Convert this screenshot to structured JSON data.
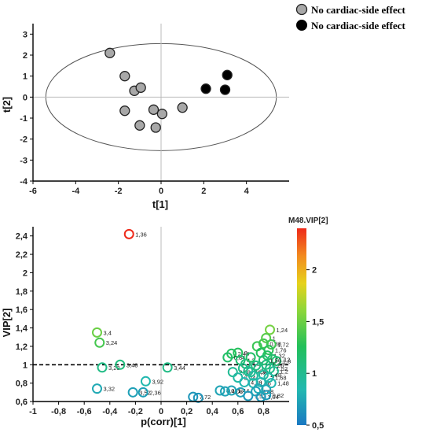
{
  "legend": {
    "items": [
      {
        "label": "No cardiac-side effect",
        "color": "#a8a8a8"
      },
      {
        "label": "No cardiac-side effect",
        "color": "#000000"
      }
    ]
  },
  "chart_data": [
    {
      "type": "scatter",
      "title": "",
      "xlabel": "t[1]",
      "ylabel": "t[2]",
      "xlim": [
        -6,
        6
      ],
      "ylim": [
        -4,
        3.5
      ],
      "xticks": [
        -6,
        -4,
        -2,
        0,
        2,
        4
      ],
      "yticks": [
        -4,
        -3,
        -2,
        -1,
        0,
        1,
        2,
        3
      ],
      "confidence_ellipse": {
        "cx": 0,
        "cy": 0,
        "rx": 5.4,
        "ry": 2.55
      },
      "series": [
        {
          "color": "#a8a8a8",
          "points": [
            [
              -2.4,
              2.1
            ],
            [
              -1.7,
              1.0
            ],
            [
              -1.25,
              0.3
            ],
            [
              -0.95,
              0.45
            ],
            [
              -1.7,
              -0.65
            ],
            [
              -1.0,
              -1.35
            ],
            [
              -0.35,
              -0.6
            ],
            [
              -0.25,
              -1.45
            ],
            [
              0.05,
              -0.8
            ],
            [
              1.0,
              -0.5
            ]
          ]
        },
        {
          "color": "#000000",
          "points": [
            [
              2.1,
              0.4
            ],
            [
              3.0,
              0.35
            ],
            [
              3.1,
              1.05
            ]
          ]
        }
      ]
    },
    {
      "type": "scatter",
      "title": "",
      "xlabel": "p(corr)[1]",
      "ylabel": "VIP[2]",
      "xlim": [
        -1,
        1
      ],
      "ylim": [
        0.6,
        2.5
      ],
      "xticks": [
        -1,
        -0.8,
        -0.6,
        -0.4,
        -0.2,
        0,
        0.2,
        0.4,
        0.6,
        0.8
      ],
      "xticklabels": [
        "-1",
        "-0,8",
        "-0,6",
        "-0,4",
        "-0,2",
        "0",
        "0,2",
        "0,4",
        "0,6",
        "0,8"
      ],
      "yticks": [
        0.6,
        0.8,
        1,
        1.2,
        1.4,
        1.6,
        1.8,
        2,
        2.2,
        2.4
      ],
      "yticklabels": [
        "0,6",
        "0,8",
        "1",
        "1,2",
        "1,4",
        "1,6",
        "1,8",
        "2",
        "2,2",
        "2,4"
      ],
      "threshold": 1,
      "colorbar": {
        "title": "M48.VIP[2]",
        "min": 0.5,
        "max": 2.4,
        "ticks": [
          0.5,
          1,
          1.5,
          2
        ],
        "ticklabels": [
          "0,5",
          "1",
          "1,5",
          "2"
        ],
        "colors": [
          "#1a78c2",
          "#22b8b0",
          "#22c05a",
          "#8bd63a",
          "#e6d21a",
          "#f28a1e",
          "#ee2a1a"
        ]
      },
      "points": [
        {
          "x": -0.25,
          "y": 2.42,
          "label": "1,36"
        },
        {
          "x": -0.5,
          "y": 1.35,
          "label": "3,4"
        },
        {
          "x": -0.48,
          "y": 1.24,
          "label": "3,24"
        },
        {
          "x": -0.46,
          "y": 0.97,
          "label": "3,28"
        },
        {
          "x": -0.32,
          "y": 1.0,
          "label": "3,48"
        },
        {
          "x": 0.05,
          "y": 0.97,
          "label": "3,44"
        },
        {
          "x": -0.12,
          "y": 0.82,
          "label": "3,92"
        },
        {
          "x": -0.5,
          "y": 0.74,
          "label": "3,32"
        },
        {
          "x": -0.22,
          "y": 0.7,
          "label": "3,52"
        },
        {
          "x": -0.14,
          "y": 0.7,
          "label": "2,36"
        },
        {
          "x": 0.25,
          "y": 0.65,
          "label": "7,72"
        },
        {
          "x": 0.29,
          "y": 0.64,
          "label": ""
        },
        {
          "x": 0.46,
          "y": 0.72,
          "label": "4,04"
        },
        {
          "x": 0.5,
          "y": 0.71,
          "label": "4,08"
        },
        {
          "x": 0.55,
          "y": 1.12,
          "label": "2,44"
        },
        {
          "x": 0.6,
          "y": 1.13,
          "label": "3"
        },
        {
          "x": 0.52,
          "y": 1.08,
          "label": "0,84"
        },
        {
          "x": 0.62,
          "y": 1.05,
          "label": "4,2"
        },
        {
          "x": 0.66,
          "y": 1.01,
          "label": "4,88"
        },
        {
          "x": 0.56,
          "y": 0.92,
          "label": "2,08"
        },
        {
          "x": 0.6,
          "y": 0.86,
          "label": "2,04"
        },
        {
          "x": 0.68,
          "y": 0.93,
          "label": "4,28"
        },
        {
          "x": 0.7,
          "y": 0.92,
          "label": "4,36"
        },
        {
          "x": 0.65,
          "y": 0.81,
          "label": "4,36"
        },
        {
          "x": 0.72,
          "y": 0.8,
          "label": "1,16"
        },
        {
          "x": 0.55,
          "y": 0.72,
          "label": "1,44"
        },
        {
          "x": 0.62,
          "y": 0.7,
          "label": ""
        },
        {
          "x": 0.68,
          "y": 0.66,
          "label": "1,52"
        },
        {
          "x": 0.74,
          "y": 0.71,
          "label": "0,88"
        },
        {
          "x": 0.78,
          "y": 0.65,
          "label": "1,04"
        },
        {
          "x": 0.82,
          "y": 0.67,
          "label": "0,82"
        },
        {
          "x": 0.8,
          "y": 1.23,
          "label": "0,88"
        },
        {
          "x": 0.85,
          "y": 1.38,
          "label": "1,24"
        },
        {
          "x": 0.82,
          "y": 1.29,
          "label": "1"
        },
        {
          "x": 0.86,
          "y": 1.22,
          "label": "1,72"
        },
        {
          "x": 0.84,
          "y": 1.16,
          "label": "1,76"
        },
        {
          "x": 0.83,
          "y": 1.1,
          "label": "1,32"
        },
        {
          "x": 0.87,
          "y": 1.06,
          "label": "1,12"
        },
        {
          "x": 0.9,
          "y": 1.04,
          "label": "1,8"
        },
        {
          "x": 0.75,
          "y": 1.2,
          "label": ""
        },
        {
          "x": 0.78,
          "y": 1.13,
          "label": ""
        },
        {
          "x": 0.8,
          "y": 1.05,
          "label": "1,56"
        },
        {
          "x": 0.82,
          "y": 1.0,
          "label": "1,28"
        },
        {
          "x": 0.85,
          "y": 0.96,
          "label": "1,52"
        },
        {
          "x": 0.88,
          "y": 0.93,
          "label": "1,2"
        },
        {
          "x": 0.76,
          "y": 0.96,
          "label": ""
        },
        {
          "x": 0.8,
          "y": 0.89,
          "label": "1,48"
        },
        {
          "x": 0.84,
          "y": 0.86,
          "label": "1,68"
        },
        {
          "x": 0.78,
          "y": 0.81,
          "label": ""
        },
        {
          "x": 0.86,
          "y": 0.8,
          "label": "1,48"
        },
        {
          "x": 0.72,
          "y": 0.88,
          "label": ""
        },
        {
          "x": 0.74,
          "y": 0.99,
          "label": ""
        },
        {
          "x": 0.7,
          "y": 1.08,
          "label": ""
        },
        {
          "x": 0.64,
          "y": 0.96,
          "label": ""
        },
        {
          "x": 0.76,
          "y": 0.74,
          "label": ""
        },
        {
          "x": 0.82,
          "y": 0.73,
          "label": ""
        }
      ]
    }
  ]
}
